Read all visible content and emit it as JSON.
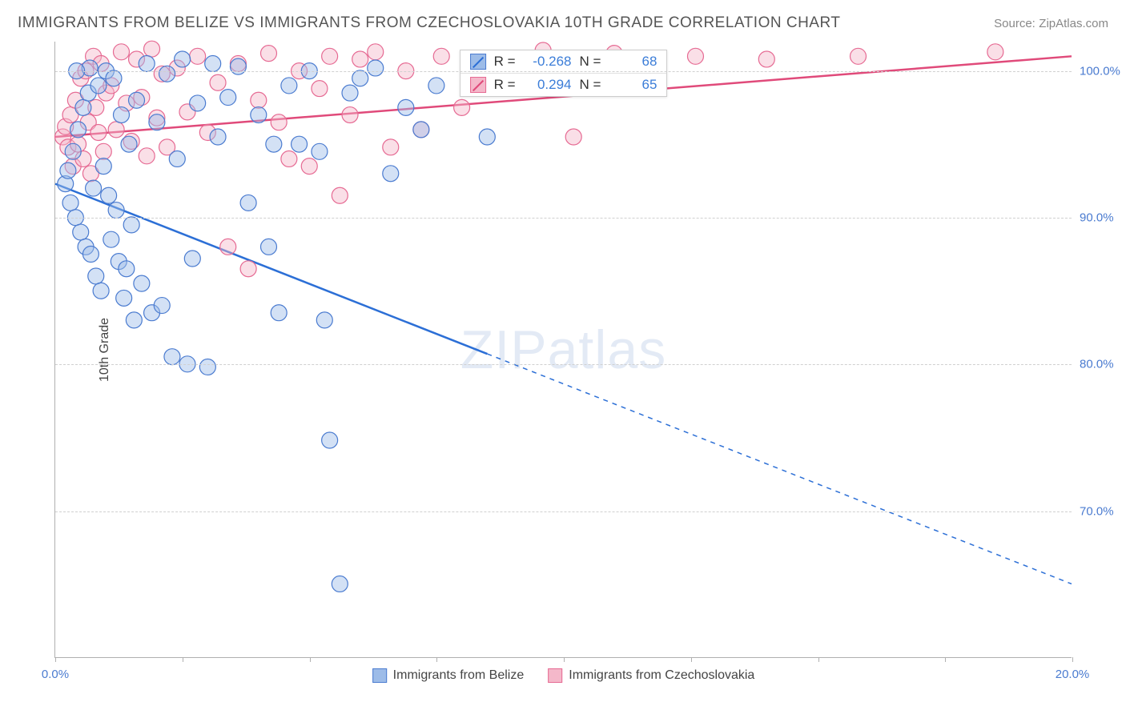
{
  "title": "IMMIGRANTS FROM BELIZE VS IMMIGRANTS FROM CZECHOSLOVAKIA 10TH GRADE CORRELATION CHART",
  "source_label": "Source:",
  "source_name": "ZipAtlas.com",
  "ylabel": "10th Grade",
  "watermark": {
    "bold": "ZIP",
    "rest": "atlas"
  },
  "chart": {
    "type": "scatter",
    "background_color": "#ffffff",
    "grid_color": "#d0d0d0",
    "axis_color": "#b0b0b0",
    "xlim": [
      0,
      20
    ],
    "ylim": [
      60,
      102
    ],
    "xtick_positions": [
      0,
      2.5,
      5,
      7.5,
      10,
      12.5,
      15,
      17.5,
      20
    ],
    "xtick_labels": {
      "0": "0.0%",
      "20": "20.0%"
    },
    "ytick_positions": [
      70,
      80,
      90,
      100
    ],
    "ytick_labels": [
      "70.0%",
      "80.0%",
      "90.0%",
      "100.0%"
    ],
    "tick_label_color": "#4a7bd0",
    "tick_label_fontsize": 15,
    "marker_radius": 10,
    "marker_opacity": 0.45,
    "marker_stroke_width": 1.2,
    "line_width": 2.5
  },
  "series": [
    {
      "name": "Immigrants from Belize",
      "color_fill": "#9dbce8",
      "color_stroke": "#4a7bd0",
      "line_color": "#2c6fd6",
      "trend": {
        "x0": 0,
        "y0": 92.3,
        "x1": 20,
        "y1": 65.0,
        "solid_until_x": 8.5
      },
      "points": [
        [
          0.2,
          92.3
        ],
        [
          0.25,
          93.2
        ],
        [
          0.3,
          91.0
        ],
        [
          0.35,
          94.5
        ],
        [
          0.4,
          90.0
        ],
        [
          0.45,
          96.0
        ],
        [
          0.5,
          89.0
        ],
        [
          0.55,
          97.5
        ],
        [
          0.6,
          88.0
        ],
        [
          0.65,
          98.5
        ],
        [
          0.7,
          87.5
        ],
        [
          0.75,
          92.0
        ],
        [
          0.8,
          86.0
        ],
        [
          0.85,
          99.0
        ],
        [
          0.9,
          85.0
        ],
        [
          0.95,
          93.5
        ],
        [
          1.0,
          100.0
        ],
        [
          1.05,
          91.5
        ],
        [
          1.1,
          88.5
        ],
        [
          1.15,
          99.5
        ],
        [
          1.2,
          90.5
        ],
        [
          1.25,
          87.0
        ],
        [
          1.3,
          97.0
        ],
        [
          1.35,
          84.5
        ],
        [
          1.4,
          86.5
        ],
        [
          1.45,
          95.0
        ],
        [
          1.5,
          89.5
        ],
        [
          1.6,
          98.0
        ],
        [
          1.7,
          85.5
        ],
        [
          1.8,
          100.5
        ],
        [
          1.9,
          83.5
        ],
        [
          2.0,
          96.5
        ],
        [
          2.1,
          84.0
        ],
        [
          2.2,
          99.8
        ],
        [
          2.3,
          80.5
        ],
        [
          2.4,
          94.0
        ],
        [
          2.5,
          100.8
        ],
        [
          2.6,
          80.0
        ],
        [
          2.8,
          97.8
        ],
        [
          3.0,
          79.8
        ],
        [
          3.2,
          95.5
        ],
        [
          3.4,
          98.2
        ],
        [
          3.6,
          100.3
        ],
        [
          3.8,
          91.0
        ],
        [
          4.0,
          97.0
        ],
        [
          4.2,
          88.0
        ],
        [
          4.4,
          83.5
        ],
        [
          4.6,
          99.0
        ],
        [
          4.8,
          95.0
        ],
        [
          5.0,
          100.0
        ],
        [
          5.2,
          94.5
        ],
        [
          5.4,
          74.8
        ],
        [
          5.6,
          65.0
        ],
        [
          5.8,
          98.5
        ],
        [
          6.0,
          99.5
        ],
        [
          6.3,
          100.2
        ],
        [
          6.6,
          93.0
        ],
        [
          6.9,
          97.5
        ],
        [
          7.2,
          96.0
        ],
        [
          7.5,
          99.0
        ],
        [
          5.3,
          83.0
        ],
        [
          2.7,
          87.2
        ],
        [
          1.55,
          83.0
        ],
        [
          0.68,
          100.2
        ],
        [
          0.42,
          100.0
        ],
        [
          3.1,
          100.5
        ],
        [
          8.5,
          95.5
        ],
        [
          4.3,
          95.0
        ]
      ]
    },
    {
      "name": "Immigrants from Czechoslovakia",
      "color_fill": "#f4b8ca",
      "color_stroke": "#e66a93",
      "line_color": "#e04a7a",
      "trend": {
        "x0": 0,
        "y0": 95.5,
        "x1": 20,
        "y1": 101.0,
        "solid_until_x": 20
      },
      "points": [
        [
          0.15,
          95.5
        ],
        [
          0.2,
          96.2
        ],
        [
          0.25,
          94.8
        ],
        [
          0.3,
          97.0
        ],
        [
          0.35,
          93.5
        ],
        [
          0.4,
          98.0
        ],
        [
          0.45,
          95.0
        ],
        [
          0.5,
          99.5
        ],
        [
          0.55,
          94.0
        ],
        [
          0.6,
          100.0
        ],
        [
          0.65,
          96.5
        ],
        [
          0.7,
          93.0
        ],
        [
          0.75,
          101.0
        ],
        [
          0.8,
          97.5
        ],
        [
          0.85,
          95.8
        ],
        [
          0.9,
          100.5
        ],
        [
          0.95,
          94.5
        ],
        [
          1.0,
          98.5
        ],
        [
          1.1,
          99.0
        ],
        [
          1.2,
          96.0
        ],
        [
          1.3,
          101.3
        ],
        [
          1.4,
          97.8
        ],
        [
          1.5,
          95.2
        ],
        [
          1.6,
          100.8
        ],
        [
          1.7,
          98.2
        ],
        [
          1.8,
          94.2
        ],
        [
          1.9,
          101.5
        ],
        [
          2.0,
          96.8
        ],
        [
          2.1,
          99.8
        ],
        [
          2.2,
          94.8
        ],
        [
          2.4,
          100.2
        ],
        [
          2.6,
          97.2
        ],
        [
          2.8,
          101.0
        ],
        [
          3.0,
          95.8
        ],
        [
          3.2,
          99.2
        ],
        [
          3.4,
          88.0
        ],
        [
          3.6,
          100.5
        ],
        [
          3.8,
          86.5
        ],
        [
          4.0,
          98.0
        ],
        [
          4.2,
          101.2
        ],
        [
          4.4,
          96.5
        ],
        [
          4.6,
          94.0
        ],
        [
          4.8,
          100.0
        ],
        [
          5.0,
          93.5
        ],
        [
          5.2,
          98.8
        ],
        [
          5.4,
          101.0
        ],
        [
          5.6,
          91.5
        ],
        [
          5.8,
          97.0
        ],
        [
          6.0,
          100.8
        ],
        [
          6.3,
          101.3
        ],
        [
          6.6,
          94.8
        ],
        [
          6.9,
          100.0
        ],
        [
          7.2,
          96.0
        ],
        [
          7.6,
          101.0
        ],
        [
          8.0,
          97.5
        ],
        [
          8.5,
          100.5
        ],
        [
          9.0,
          99.0
        ],
        [
          9.6,
          101.4
        ],
        [
          10.2,
          95.5
        ],
        [
          11.0,
          101.2
        ],
        [
          11.8,
          100.0
        ],
        [
          12.6,
          101.0
        ],
        [
          14.0,
          100.8
        ],
        [
          15.8,
          101.0
        ],
        [
          18.5,
          101.3
        ]
      ]
    }
  ],
  "correlation_box": [
    {
      "series_index": 0,
      "r_label": "R =",
      "r": "-0.268",
      "n_label": "N =",
      "n": "68"
    },
    {
      "series_index": 1,
      "r_label": "R =",
      "r": " 0.294",
      "n_label": "N =",
      "n": "65"
    }
  ],
  "bottom_legend": [
    {
      "series_index": 0
    },
    {
      "series_index": 1
    }
  ]
}
